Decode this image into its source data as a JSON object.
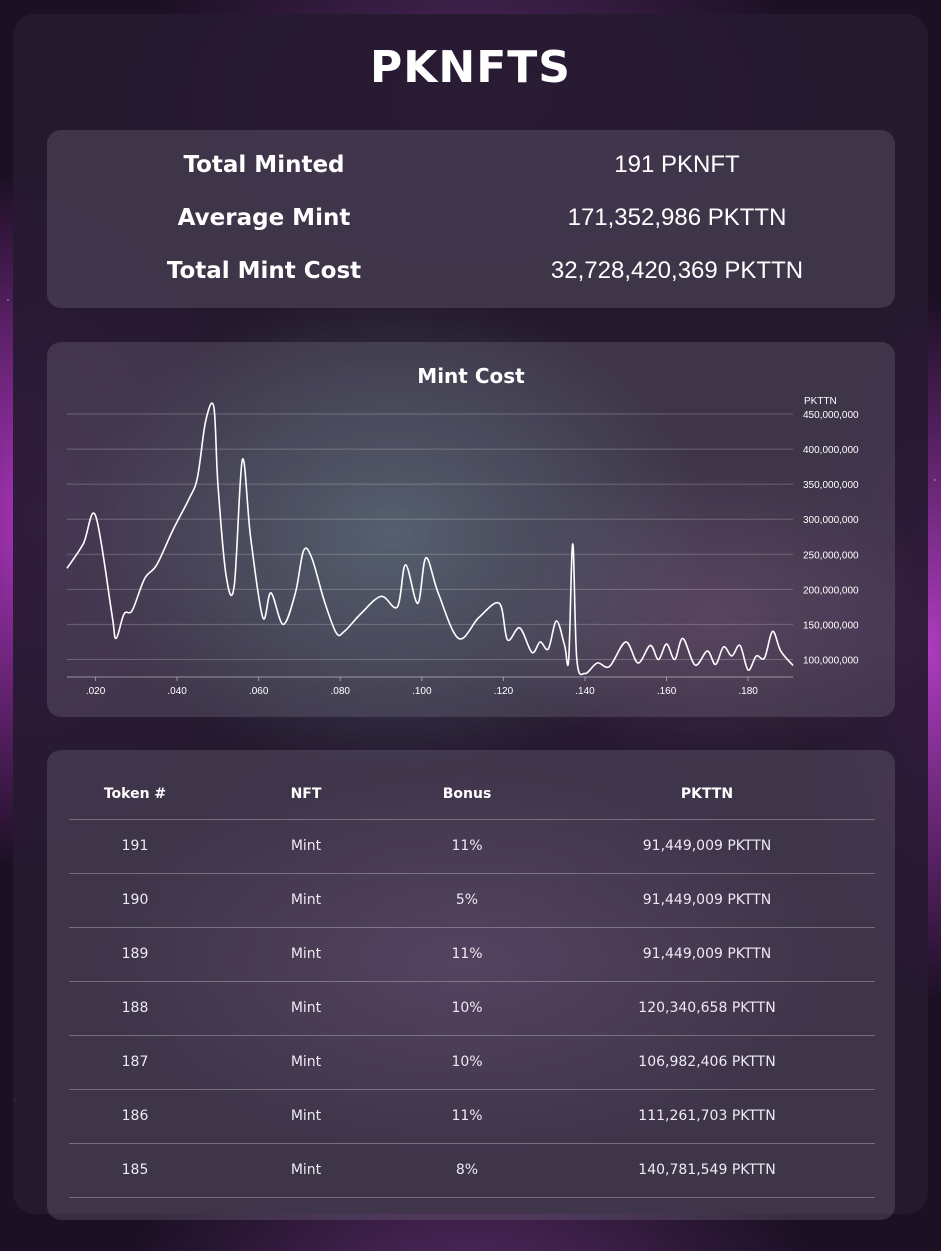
{
  "header": {
    "title": "PKNFTS"
  },
  "stats": [
    {
      "label": "Total Minted",
      "value": "191 PKNFT"
    },
    {
      "label": "Average Mint",
      "value": "171,352,986 PKTTN"
    },
    {
      "label": "Total Mint Cost",
      "value": "32,728,420,369 PKTTN"
    }
  ],
  "chart_data": {
    "type": "line",
    "title": "Mint Cost",
    "ylabel": "PKTTN",
    "ylim": [
      75000000,
      460000000
    ],
    "xlim": [
      0.013,
      0.191
    ],
    "grid": true,
    "y_ticks": [
      "450,000,000",
      "400,000,000",
      "350,000,000",
      "300,000,000",
      "250,000,000",
      "200,000,000",
      "150,000,000",
      "100,000,000"
    ],
    "x_ticks": [
      ".020",
      ".040",
      ".060",
      ".080",
      ".100",
      ".120",
      ".140",
      ".160",
      ".180"
    ],
    "x_tick_values": [
      0.02,
      0.04,
      0.06,
      0.08,
      0.1,
      0.12,
      0.14,
      0.16,
      0.18
    ],
    "series": [
      {
        "x": [
          0.013,
          0.017,
          0.02,
          0.024,
          0.025,
          0.027,
          0.029,
          0.032,
          0.035,
          0.039,
          0.043,
          0.045,
          0.047,
          0.049,
          0.05,
          0.052,
          0.054,
          0.056,
          0.058,
          0.061,
          0.063,
          0.066,
          0.069,
          0.071,
          0.073,
          0.076,
          0.079,
          0.081,
          0.085,
          0.09,
          0.094,
          0.096,
          0.099,
          0.101,
          0.104,
          0.109,
          0.114,
          0.119,
          0.121,
          0.124,
          0.127,
          0.129,
          0.131,
          0.133,
          0.135,
          0.136,
          0.137,
          0.138,
          0.14,
          0.143,
          0.146,
          0.15,
          0.153,
          0.156,
          0.158,
          0.16,
          0.162,
          0.164,
          0.167,
          0.17,
          0.172,
          0.174,
          0.176,
          0.178,
          0.18,
          0.182,
          0.184,
          0.186,
          0.188,
          0.191
        ],
        "values": [
          230000000,
          265000000,
          305000000,
          165000000,
          130000000,
          165000000,
          170000000,
          215000000,
          235000000,
          285000000,
          330000000,
          360000000,
          440000000,
          460000000,
          350000000,
          220000000,
          205000000,
          385000000,
          275000000,
          160000000,
          195000000,
          150000000,
          195000000,
          255000000,
          245000000,
          185000000,
          138000000,
          140000000,
          165000000,
          190000000,
          175000000,
          235000000,
          180000000,
          245000000,
          195000000,
          130000000,
          160000000,
          180000000,
          128000000,
          145000000,
          110000000,
          125000000,
          115000000,
          155000000,
          120000000,
          100000000,
          265000000,
          100000000,
          80000000,
          95000000,
          90000000,
          125000000,
          95000000,
          120000000,
          100000000,
          122000000,
          100000000,
          130000000,
          92000000,
          112000000,
          93000000,
          118000000,
          105000000,
          120000000,
          85000000,
          105000000,
          102000000,
          140000000,
          112000000,
          91449009
        ]
      }
    ]
  },
  "table": {
    "headers": [
      "Token #",
      "NFT",
      "Bonus",
      "PKTTN"
    ],
    "rows": [
      {
        "token": "191",
        "nft": "Mint",
        "bonus": "11%",
        "pkttn": "91,449,009 PKTTN"
      },
      {
        "token": "190",
        "nft": "Mint",
        "bonus": "5%",
        "pkttn": "91,449,009 PKTTN"
      },
      {
        "token": "189",
        "nft": "Mint",
        "bonus": "11%",
        "pkttn": "91,449,009 PKTTN"
      },
      {
        "token": "188",
        "nft": "Mint",
        "bonus": "10%",
        "pkttn": "120,340,658 PKTTN"
      },
      {
        "token": "187",
        "nft": "Mint",
        "bonus": "10%",
        "pkttn": "106,982,406 PKTTN"
      },
      {
        "token": "186",
        "nft": "Mint",
        "bonus": "11%",
        "pkttn": "111,261,703 PKTTN"
      },
      {
        "token": "185",
        "nft": "Mint",
        "bonus": "8%",
        "pkttn": "140,781,549 PKTTN"
      }
    ]
  }
}
